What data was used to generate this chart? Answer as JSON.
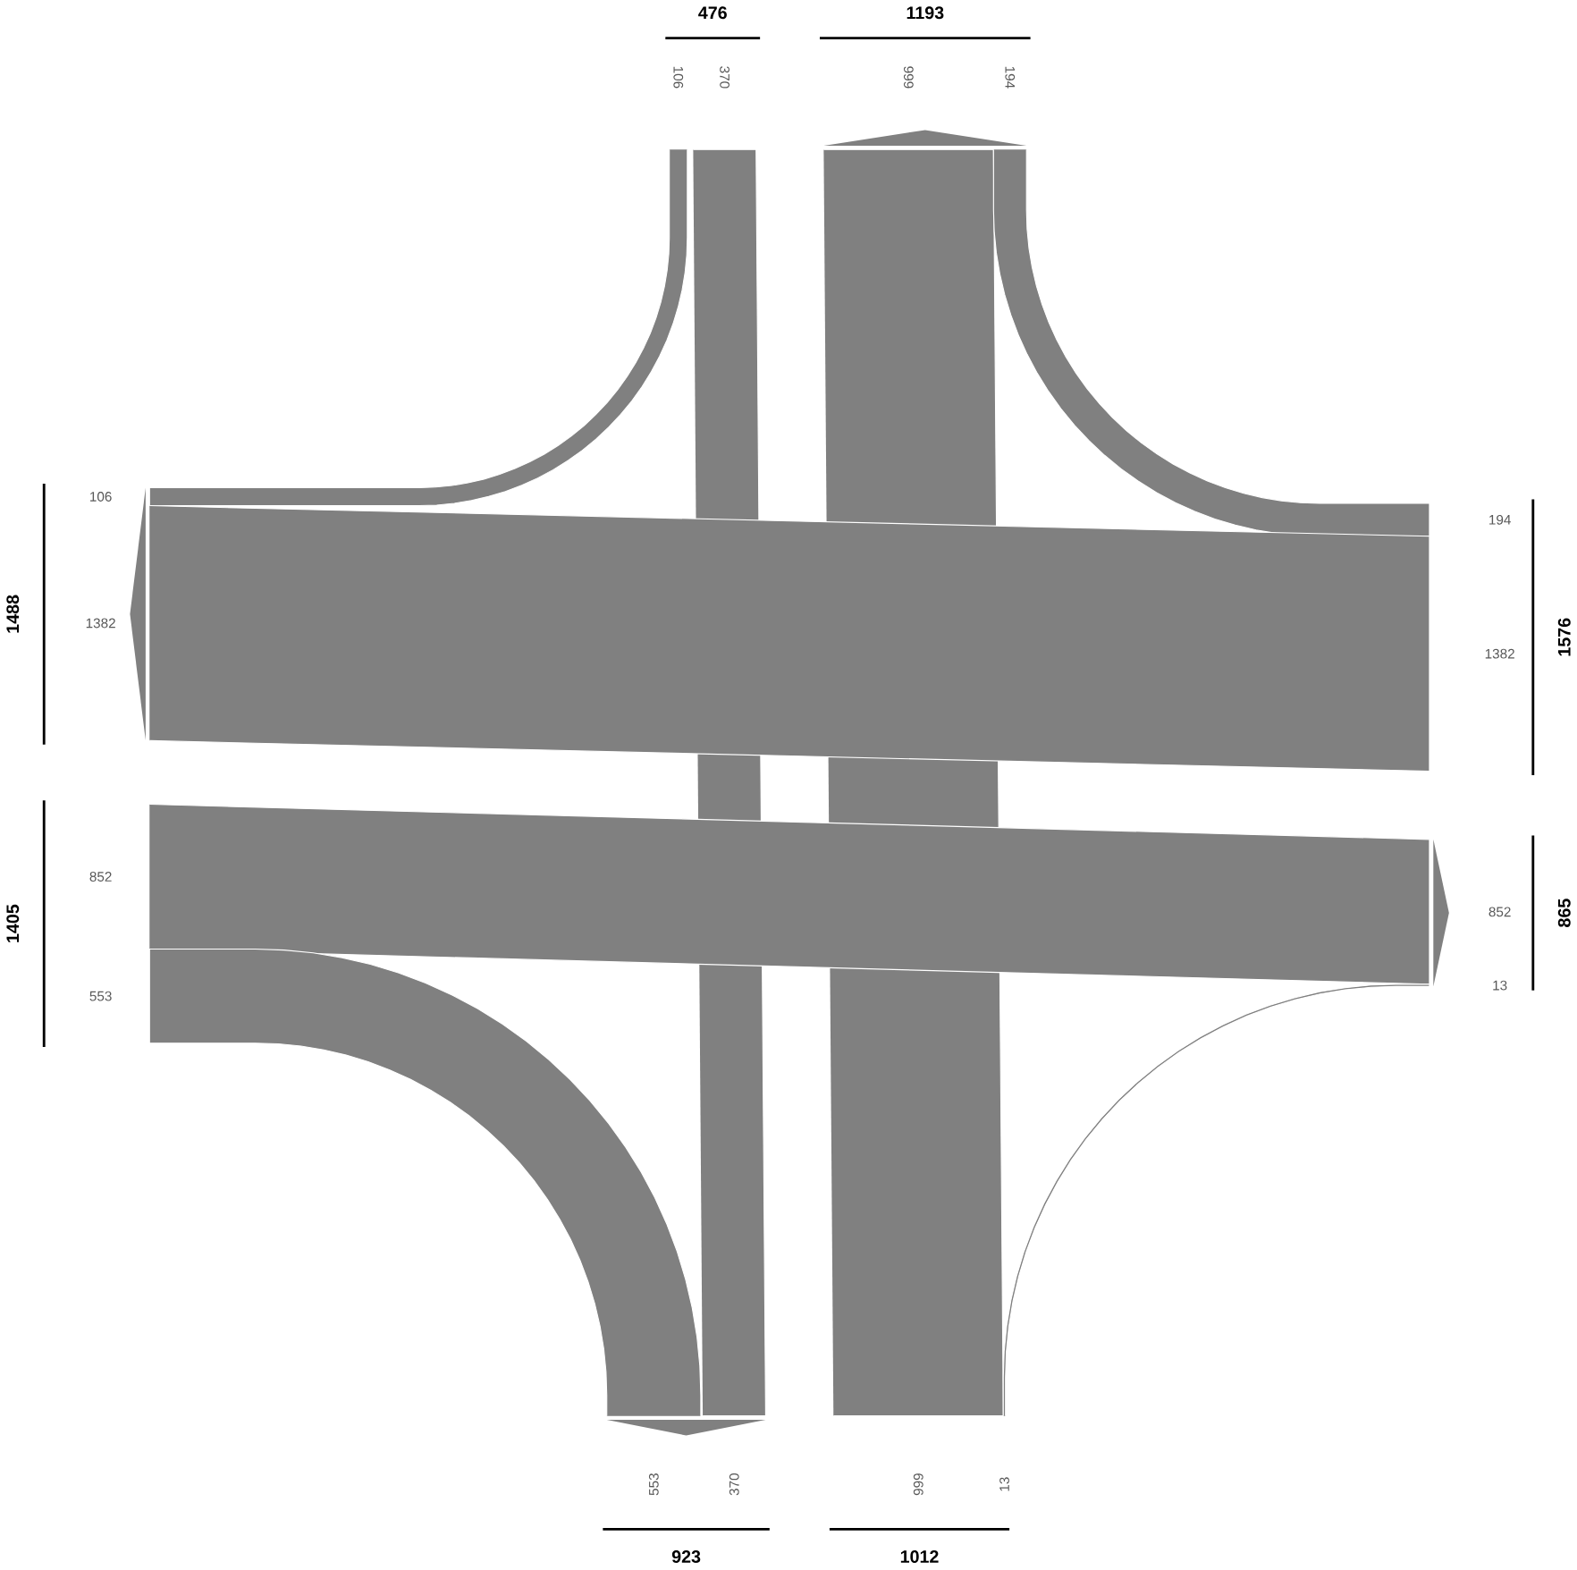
{
  "chart_data": {
    "type": "other",
    "values": [
      106,
      370,
      999,
      194,
      1382,
      852,
      553,
      13
    ],
    "totals": [
      "476",
      "1193",
      "923",
      "1012",
      "1488",
      "1405",
      "1576",
      "865"
    ],
    "annotations": [
      "106",
      "370",
      "999",
      "194",
      "1382",
      "852",
      "553",
      "13"
    ],
    "color": "#808080",
    "data_labels": true
  }
}
